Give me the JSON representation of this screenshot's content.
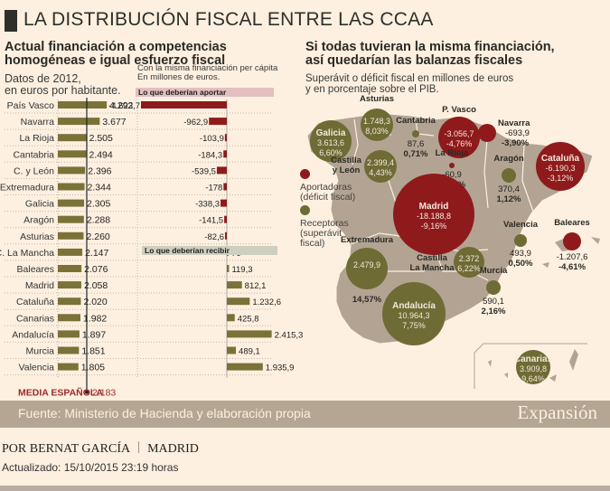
{
  "header": {
    "title": "LA DISTRIBUCIÓN FISCAL ENTRE LAS CCAA"
  },
  "left_panel": {
    "title": "Actual financiación a competencias homogéneas e igual esfuerzo fiscal",
    "subtitle_line1": "Datos de 2012,",
    "subtitle_line2": "en euros por habitante.",
    "mid_subtitle_line1": "Con la misma financiación per cápita",
    "mid_subtitle_line2": "En millones de euros.",
    "aportar_label": "Lo que deberían aportar",
    "recibir_label": "Lo que deberían recibir",
    "media_label": "MEDIA ESPAÑOLA",
    "media_value": "2.183"
  },
  "right_panel": {
    "title_line1": "Si todas tuvieran la misma financiación,",
    "title_line2": "así quedarían las balanzas fiscales",
    "subtitle_line1": "Superávit o déficit fiscal en millones de euros",
    "subtitle_line2": "y en porcentaje sobre el PIB.",
    "legend": {
      "aportadoras_line1": "Aportadoras",
      "aportadoras_line2": "(déficit fiscal)",
      "receptoras_line1": "Receptoras",
      "receptoras_line2": "(superávit",
      "receptoras_line3": "fiscal)"
    }
  },
  "colors": {
    "deficit": "#8e1a1c",
    "surplus": "#6e6b35",
    "bar_olive": "#7a7238",
    "media_red": "#9a2a2a",
    "map_land": "#b3a392",
    "background": "#fdf0e0"
  },
  "chart_data": [
    {
      "type": "bar",
      "title": "Actual financiación a competencias homogéneas e igual esfuerzo fiscal",
      "ylabel": "euros por habitante (2012)",
      "categories": [
        "País Vasco",
        "Navarra",
        "La Rioja",
        "Cantabria",
        "C. y León",
        "Extremadura",
        "Galicia",
        "Aragón",
        "Asturias",
        "C. La Mancha",
        "Baleares",
        "Madrid",
        "Cataluña",
        "Canarias",
        "Andalucía",
        "Murcia",
        "Valencia"
      ],
      "values": [
        4292,
        3677,
        2505,
        2494,
        2396,
        2344,
        2305,
        2288,
        2260,
        2147,
        2076,
        2058,
        2020,
        1982,
        1897,
        1851,
        1805
      ],
      "value_labels": [
        "4.292",
        "3.677",
        "2.505",
        "2.494",
        "2.396",
        "2.344",
        "2.305",
        "2.288",
        "2.260",
        "2.147",
        "2.076",
        "2.058",
        "2.020",
        "1.982",
        "1.897",
        "1.851",
        "1.805"
      ],
      "reference_line": {
        "label": "MEDIA ESPAÑOLA",
        "value": 2183
      }
    },
    {
      "type": "bar",
      "title": "Con la misma financiación per cápita (millones de euros)",
      "categories": [
        "País Vasco",
        "Navarra",
        "La Rioja",
        "Cantabria",
        "C. y León",
        "Extremadura",
        "Galicia",
        "Aragón",
        "Asturias",
        "C. La Mancha",
        "Baleares",
        "Madrid",
        "Cataluña",
        "Canarias",
        "Andalucía",
        "Murcia",
        "Valencia"
      ],
      "values": [
        -4623.7,
        -962.9,
        -103.9,
        -184.3,
        -539.5,
        -178,
        -338.3,
        -141.5,
        -82.6,
        76,
        119.3,
        812.1,
        1232.6,
        425.8,
        2415.3,
        489.1,
        1935.9
      ],
      "value_labels": [
        "-4.623,7",
        "-962,9",
        "-103,9",
        "-184,3",
        "-539,5",
        "-178",
        "-338,3",
        "-141,5",
        "-82,6",
        "76",
        "119,3",
        "812,1",
        "1.232,6",
        "425,8",
        "2.415,3",
        "489,1",
        "1.935,9"
      ],
      "negative_label": "Lo que deberían aportar",
      "positive_label": "Lo que deberían recibir"
    },
    {
      "type": "scatter",
      "title": "Si todas tuvieran la misma financiación, así quedarían las balanzas fiscales",
      "subtitle": "Superávit o déficit fiscal en millones de euros y en porcentaje sobre el PIB.",
      "points": [
        {
          "name": "Galicia",
          "value": "3.613,6",
          "pct": "6,60%",
          "amount": 3613.6,
          "kind": "surplus"
        },
        {
          "name": "Asturias",
          "value": "1.748,3",
          "pct": "8,03%",
          "amount": 1748.3,
          "kind": "surplus"
        },
        {
          "name": "Cantabria",
          "value": "87,6",
          "pct": "0,71%",
          "amount": 87.6,
          "kind": "surplus"
        },
        {
          "name": "P. Vasco",
          "value": "-3.056,7",
          "pct": "-4,76%",
          "amount": -3056.7,
          "kind": "deficit"
        },
        {
          "name": "Navarra",
          "value": "-693,9",
          "pct": "-3,90%",
          "amount": -693.9,
          "kind": "deficit"
        },
        {
          "name": "La Rioja",
          "value": "-60,9",
          "pct": "-0,78%",
          "amount": -60.9,
          "kind": "deficit"
        },
        {
          "name": "Castilla y León",
          "value": "2.399,4",
          "pct": "4,43%",
          "amount": 2399.4,
          "kind": "surplus"
        },
        {
          "name": "Aragón",
          "value": "370,4",
          "pct": "1,12%",
          "amount": 370.4,
          "kind": "surplus"
        },
        {
          "name": "Cataluña",
          "value": "-6.190,3",
          "pct": "-3,12%",
          "amount": -6190.3,
          "kind": "deficit"
        },
        {
          "name": "Madrid",
          "value": "-18.188,8",
          "pct": "-9,16%",
          "amount": -18188.8,
          "kind": "deficit"
        },
        {
          "name": "Baleares",
          "value": "-1.207,6",
          "pct": "-4,61%",
          "amount": -1207.6,
          "kind": "deficit"
        },
        {
          "name": "Valencia",
          "value": "493,9",
          "pct": "0,50%",
          "amount": 493.9,
          "kind": "surplus"
        },
        {
          "name": "Extremadura",
          "value": "2.479,9",
          "pct": "14,57%",
          "amount": 2479.9,
          "kind": "surplus"
        },
        {
          "name": "Castilla La Mancha",
          "value": "2.372",
          "pct": "6,22%",
          "amount": 2372,
          "kind": "surplus"
        },
        {
          "name": "Murcia",
          "value": "590,1",
          "pct": "2,16%",
          "amount": 590.1,
          "kind": "surplus"
        },
        {
          "name": "Andalucía",
          "value": "10.964,3",
          "pct": "7,75%",
          "amount": 10964.3,
          "kind": "surplus"
        },
        {
          "name": "Canarias",
          "value": "3.909,8",
          "pct": "9,64%",
          "amount": 3909.8,
          "kind": "surplus"
        }
      ]
    }
  ],
  "footer": {
    "source": "Fuente: Ministerio de Hacienda y elaboración propia",
    "brand": "Expansión"
  },
  "article": {
    "author": "POR BERNAT GARCÍA",
    "location": "MADRID",
    "updated": "Actualizado: 15/10/2015  23:19 horas"
  }
}
